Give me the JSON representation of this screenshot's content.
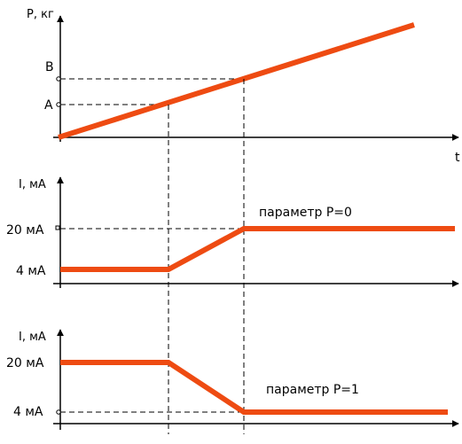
{
  "colors": {
    "signal": "#ee4b12",
    "axis": "#000000",
    "guide": "#000000"
  },
  "top_plot": {
    "y_axis_label": "Р, кг",
    "x_axis_label": "t",
    "level_b": "В",
    "level_a": "А"
  },
  "middle_plot": {
    "y_axis_label": "I, мА",
    "tick_high": "20 мА",
    "tick_low": "4 мА",
    "annotation": "параметр P=0"
  },
  "bottom_plot": {
    "y_axis_label": "I, мА",
    "tick_high": "20 мА",
    "tick_low": "4 мА",
    "annotation": "параметр P=1"
  }
}
